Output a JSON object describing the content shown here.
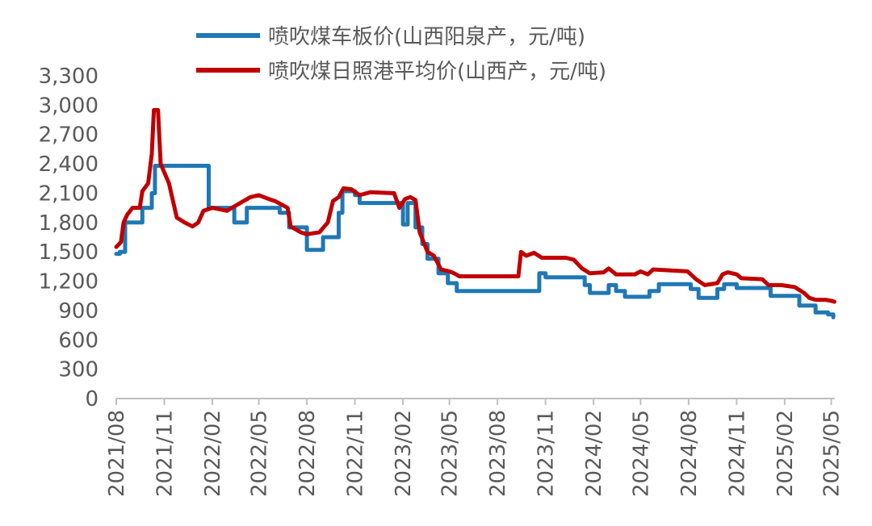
{
  "chart_data": {
    "type": "line",
    "title": "",
    "xlabel": "",
    "ylabel": "",
    "ylim": [
      0,
      3300
    ],
    "yticks": [
      0,
      300,
      600,
      900,
      1200,
      1500,
      1800,
      2100,
      2400,
      2700,
      3000,
      3300
    ],
    "ytick_labels": [
      "0",
      "300",
      "600",
      "900",
      "1,200",
      "1,500",
      "1,800",
      "2,100",
      "2,400",
      "2,700",
      "3,000",
      "3,300"
    ],
    "xlim": [
      "2021/08",
      "2025/05"
    ],
    "xticks": [
      "2021/08",
      "2021/11",
      "2022/02",
      "2022/05",
      "2022/08",
      "2022/11",
      "2023/02",
      "2023/05",
      "2023/08",
      "2023/11",
      "2024/02",
      "2024/05",
      "2024/08",
      "2024/11",
      "2025/02",
      "2025/05"
    ],
    "grid": false,
    "legend_position": "top",
    "series": [
      {
        "name": "喷吹煤车板价(山西阳泉产，元/吨)",
        "color": "#1F78B4",
        "step": true,
        "points": [
          [
            "2021-08-01",
            1480
          ],
          [
            "2021-08-08",
            1500
          ],
          [
            "2021-08-18",
            1800
          ],
          [
            "2021-09-20",
            1950
          ],
          [
            "2021-10-08",
            2100
          ],
          [
            "2021-10-14",
            2380
          ],
          [
            "2022-01-25",
            1950
          ],
          [
            "2022-02-25",
            1950
          ],
          [
            "2022-03-15",
            1800
          ],
          [
            "2022-04-08",
            1950
          ],
          [
            "2022-05-25",
            1950
          ],
          [
            "2022-06-10",
            1900
          ],
          [
            "2022-06-28",
            1750
          ],
          [
            "2022-07-20",
            1750
          ],
          [
            "2022-08-01",
            1520
          ],
          [
            "2022-08-15",
            1520
          ],
          [
            "2022-09-01",
            1650
          ],
          [
            "2022-10-01",
            1900
          ],
          [
            "2022-10-08",
            2120
          ],
          [
            "2022-11-01",
            2080
          ],
          [
            "2022-11-10",
            2000
          ],
          [
            "2023-01-20",
            2000
          ],
          [
            "2023-02-01",
            1780
          ],
          [
            "2023-02-10",
            2000
          ],
          [
            "2023-02-25",
            1750
          ],
          [
            "2023-03-10",
            1580
          ],
          [
            "2023-03-20",
            1430
          ],
          [
            "2023-04-10",
            1280
          ],
          [
            "2023-04-28",
            1180
          ],
          [
            "2023-05-15",
            1100
          ],
          [
            "2023-10-10",
            1100
          ],
          [
            "2023-10-20",
            1280
          ],
          [
            "2023-11-01",
            1240
          ],
          [
            "2024-01-15",
            1160
          ],
          [
            "2024-01-25",
            1080
          ],
          [
            "2024-03-01",
            1160
          ],
          [
            "2024-03-15",
            1100
          ],
          [
            "2024-04-01",
            1040
          ],
          [
            "2024-05-01",
            1040
          ],
          [
            "2024-05-18",
            1100
          ],
          [
            "2024-06-05",
            1170
          ],
          [
            "2024-07-25",
            1170
          ],
          [
            "2024-08-05",
            1120
          ],
          [
            "2024-08-20",
            1030
          ],
          [
            "2024-09-25",
            1120
          ],
          [
            "2024-10-08",
            1170
          ],
          [
            "2024-11-01",
            1130
          ],
          [
            "2024-12-20",
            1130
          ],
          [
            "2025-01-05",
            1050
          ],
          [
            "2025-02-20",
            1050
          ],
          [
            "2025-03-01",
            950
          ],
          [
            "2025-04-01",
            880
          ],
          [
            "2025-04-25",
            860
          ],
          [
            "2025-05-05",
            830
          ]
        ]
      },
      {
        "name": "喷吹煤日照港平均价(山西产，元/吨)",
        "color": "#C00000",
        "step": false,
        "points": [
          [
            "2021-08-01",
            1550
          ],
          [
            "2021-08-10",
            1600
          ],
          [
            "2021-08-15",
            1800
          ],
          [
            "2021-08-22",
            1880
          ],
          [
            "2021-09-01",
            1950
          ],
          [
            "2021-09-15",
            1950
          ],
          [
            "2021-09-20",
            2120
          ],
          [
            "2021-10-01",
            2200
          ],
          [
            "2021-10-08",
            2500
          ],
          [
            "2021-10-12",
            2950
          ],
          [
            "2021-10-20",
            2950
          ],
          [
            "2021-10-25",
            2400
          ],
          [
            "2021-11-10",
            2200
          ],
          [
            "2021-11-25",
            1850
          ],
          [
            "2021-12-10",
            1800
          ],
          [
            "2021-12-25",
            1760
          ],
          [
            "2022-01-05",
            1800
          ],
          [
            "2022-01-15",
            1920
          ],
          [
            "2022-02-01",
            1950
          ],
          [
            "2022-03-01",
            1920
          ],
          [
            "2022-03-20",
            1980
          ],
          [
            "2022-04-15",
            2060
          ],
          [
            "2022-05-01",
            2080
          ],
          [
            "2022-05-20",
            2040
          ],
          [
            "2022-06-01",
            2020
          ],
          [
            "2022-06-25",
            1950
          ],
          [
            "2022-07-01",
            1760
          ],
          [
            "2022-07-20",
            1700
          ],
          [
            "2022-08-01",
            1680
          ],
          [
            "2022-08-25",
            1700
          ],
          [
            "2022-09-10",
            1800
          ],
          [
            "2022-09-20",
            2020
          ],
          [
            "2022-10-01",
            2060
          ],
          [
            "2022-10-10",
            2150
          ],
          [
            "2022-10-25",
            2140
          ],
          [
            "2022-11-10",
            2080
          ],
          [
            "2022-12-01",
            2110
          ],
          [
            "2023-01-15",
            2100
          ],
          [
            "2023-01-25",
            1950
          ],
          [
            "2023-02-05",
            2040
          ],
          [
            "2023-02-15",
            2060
          ],
          [
            "2023-02-25",
            2030
          ],
          [
            "2023-03-05",
            1700
          ],
          [
            "2023-03-20",
            1500
          ],
          [
            "2023-04-01",
            1460
          ],
          [
            "2023-04-15",
            1320
          ],
          [
            "2023-05-01",
            1300
          ],
          [
            "2023-05-10",
            1280
          ],
          [
            "2023-05-20",
            1250
          ],
          [
            "2023-06-01",
            1250
          ],
          [
            "2023-09-10",
            1250
          ],
          [
            "2023-09-15",
            1500
          ],
          [
            "2023-09-25",
            1460
          ],
          [
            "2023-10-10",
            1490
          ],
          [
            "2023-10-25",
            1440
          ],
          [
            "2023-12-10",
            1440
          ],
          [
            "2023-12-25",
            1420
          ],
          [
            "2024-01-10",
            1330
          ],
          [
            "2024-01-25",
            1280
          ],
          [
            "2024-02-20",
            1290
          ],
          [
            "2024-03-01",
            1330
          ],
          [
            "2024-03-15",
            1270
          ],
          [
            "2024-04-20",
            1270
          ],
          [
            "2024-05-01",
            1300
          ],
          [
            "2024-05-15",
            1270
          ],
          [
            "2024-05-25",
            1320
          ],
          [
            "2024-07-30",
            1300
          ],
          [
            "2024-08-15",
            1220
          ],
          [
            "2024-09-01",
            1160
          ],
          [
            "2024-09-25",
            1180
          ],
          [
            "2024-10-05",
            1270
          ],
          [
            "2024-10-15",
            1290
          ],
          [
            "2024-11-01",
            1270
          ],
          [
            "2024-11-10",
            1230
          ],
          [
            "2024-12-20",
            1220
          ],
          [
            "2025-01-01",
            1160
          ],
          [
            "2025-01-25",
            1160
          ],
          [
            "2025-02-20",
            1140
          ],
          [
            "2025-03-10",
            1080
          ],
          [
            "2025-03-20",
            1030
          ],
          [
            "2025-04-01",
            1010
          ],
          [
            "2025-04-20",
            1010
          ],
          [
            "2025-05-01",
            1000
          ],
          [
            "2025-05-07",
            990
          ]
        ]
      }
    ]
  }
}
